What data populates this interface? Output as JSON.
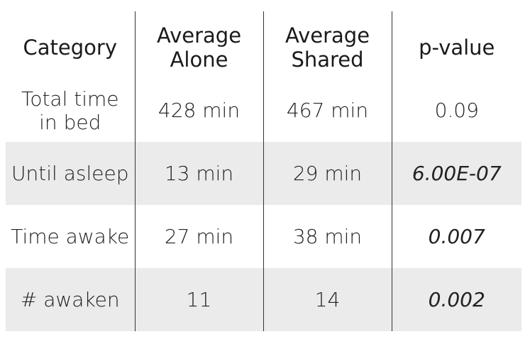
{
  "headers": {
    "category": "Category",
    "alone_line1": "Average",
    "alone_line2": "Alone",
    "shared_line1": "Average",
    "shared_line2": "Shared",
    "pvalue": "p-value"
  },
  "rows": [
    {
      "category_line1": "Total time",
      "category_line2": "in bed",
      "alone": "428 min",
      "shared": "467 min",
      "pvalue": "0.09",
      "pvalue_italic": false,
      "shaded": false
    },
    {
      "category": "Until asleep",
      "alone": "13 min",
      "shared": "29 min",
      "pvalue": "6.00E-07",
      "pvalue_italic": true,
      "shaded": true
    },
    {
      "category": "Time awake",
      "alone": "27 min",
      "shared": "38 min",
      "pvalue": "0.007",
      "pvalue_italic": true,
      "shaded": false
    },
    {
      "category": "# awaken",
      "alone": "11",
      "shared": "14",
      "pvalue": "0.002",
      "pvalue_italic": true,
      "shaded": true
    }
  ],
  "colors": {
    "shaded_row": "#ebebeb",
    "divider": "#333333"
  }
}
